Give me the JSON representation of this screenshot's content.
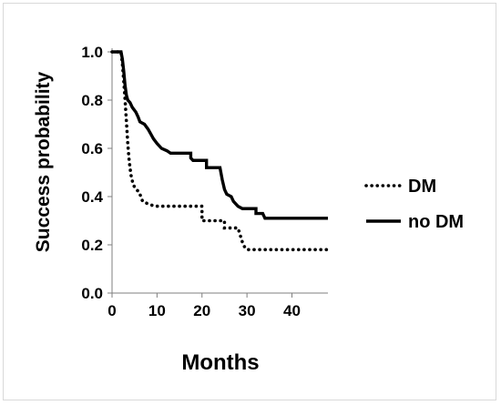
{
  "chart_data": {
    "type": "line",
    "xlabel": "Months",
    "ylabel": "Success probability",
    "xlim": [
      0,
      48
    ],
    "ylim": [
      0,
      1.0
    ],
    "x_ticks": [
      "0",
      "10",
      "20",
      "30",
      "40"
    ],
    "y_ticks": [
      "0.0",
      "0.2",
      "0.4",
      "0.6",
      "0.8",
      "1.0"
    ],
    "legend_position": "right",
    "series": [
      {
        "name": "DM",
        "style": "dotted",
        "color": "#000000",
        "points": [
          [
            0,
            1.0
          ],
          [
            2.0,
            1.0
          ],
          [
            2.3,
            0.95
          ],
          [
            2.6,
            0.88
          ],
          [
            2.9,
            0.8
          ],
          [
            3.2,
            0.71
          ],
          [
            3.5,
            0.62
          ],
          [
            3.8,
            0.55
          ],
          [
            4.2,
            0.49
          ],
          [
            4.7,
            0.45
          ],
          [
            5.3,
            0.43
          ],
          [
            6.0,
            0.42
          ],
          [
            6.8,
            0.38
          ],
          [
            8.0,
            0.37
          ],
          [
            9.5,
            0.36
          ],
          [
            15.0,
            0.36
          ],
          [
            20.0,
            0.36
          ],
          [
            20.0,
            0.3
          ],
          [
            25.0,
            0.3
          ],
          [
            25.0,
            0.27
          ],
          [
            28.0,
            0.27
          ],
          [
            28.5,
            0.24
          ],
          [
            29.0,
            0.21
          ],
          [
            29.5,
            0.19
          ],
          [
            30.0,
            0.18
          ],
          [
            48.0,
            0.18
          ]
        ]
      },
      {
        "name": "no DM",
        "style": "solid",
        "color": "#000000",
        "points": [
          [
            0,
            1.0
          ],
          [
            2.0,
            1.0
          ],
          [
            2.3,
            0.97
          ],
          [
            2.6,
            0.92
          ],
          [
            2.9,
            0.86
          ],
          [
            3.2,
            0.82
          ],
          [
            3.5,
            0.8
          ],
          [
            4.0,
            0.79
          ],
          [
            4.5,
            0.77
          ],
          [
            5.3,
            0.75
          ],
          [
            5.8,
            0.73
          ],
          [
            6.2,
            0.71
          ],
          [
            7.2,
            0.7
          ],
          [
            8.0,
            0.68
          ],
          [
            8.6,
            0.66
          ],
          [
            9.2,
            0.64
          ],
          [
            10.0,
            0.62
          ],
          [
            11.0,
            0.6
          ],
          [
            12.2,
            0.59
          ],
          [
            13.0,
            0.58
          ],
          [
            17.5,
            0.58
          ],
          [
            17.5,
            0.56
          ],
          [
            18.0,
            0.55
          ],
          [
            21.0,
            0.55
          ],
          [
            21.0,
            0.52
          ],
          [
            24.0,
            0.52
          ],
          [
            24.5,
            0.47
          ],
          [
            25.0,
            0.43
          ],
          [
            25.5,
            0.41
          ],
          [
            26.5,
            0.4
          ],
          [
            27.0,
            0.38
          ],
          [
            28.0,
            0.36
          ],
          [
            29.0,
            0.35
          ],
          [
            32.0,
            0.35
          ],
          [
            32.0,
            0.33
          ],
          [
            33.5,
            0.33
          ],
          [
            34.0,
            0.31
          ],
          [
            48.0,
            0.31
          ]
        ]
      }
    ]
  }
}
